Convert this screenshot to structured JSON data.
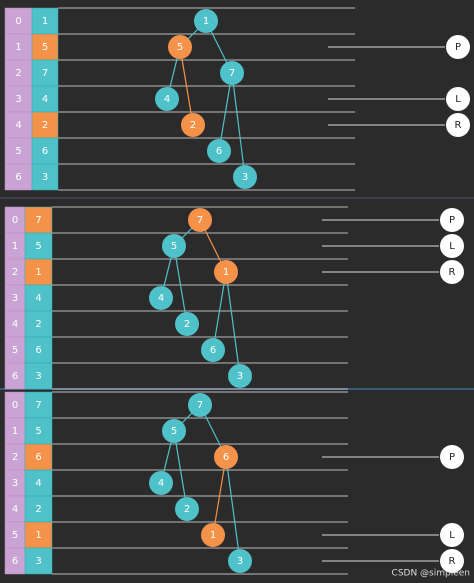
{
  "panels": [
    {
      "rows": [
        {
          "index": "0",
          "value": "1"
        },
        {
          "index": "1",
          "value": "5"
        },
        {
          "index": "2",
          "value": "7"
        },
        {
          "index": "3",
          "value": "4"
        },
        {
          "index": "4",
          "value": "2"
        },
        {
          "index": "5",
          "value": "6"
        },
        {
          "index": "6",
          "value": "3"
        }
      ],
      "highlight": [
        1,
        4
      ],
      "pointers": [
        {
          "label": "P",
          "row": 1
        },
        {
          "label": "L",
          "row": 3
        },
        {
          "label": "R",
          "row": 4
        }
      ]
    },
    {
      "rows": [
        {
          "index": "0",
          "value": "7"
        },
        {
          "index": "1",
          "value": "5"
        },
        {
          "index": "2",
          "value": "1"
        },
        {
          "index": "3",
          "value": "4"
        },
        {
          "index": "4",
          "value": "2"
        },
        {
          "index": "5",
          "value": "6"
        },
        {
          "index": "6",
          "value": "3"
        }
      ],
      "highlight": [
        0,
        2
      ],
      "pointers": [
        {
          "label": "P",
          "row": 0
        },
        {
          "label": "L",
          "row": 1
        },
        {
          "label": "R",
          "row": 2
        }
      ]
    },
    {
      "rows": [
        {
          "index": "0",
          "value": "7"
        },
        {
          "index": "1",
          "value": "5"
        },
        {
          "index": "2",
          "value": "6"
        },
        {
          "index": "3",
          "value": "4"
        },
        {
          "index": "4",
          "value": "2"
        },
        {
          "index": "5",
          "value": "1"
        },
        {
          "index": "6",
          "value": "3"
        }
      ],
      "highlight": [
        2,
        5
      ],
      "pointers": [
        {
          "label": "P",
          "row": 2
        },
        {
          "label": "L",
          "row": 5
        },
        {
          "label": "R",
          "row": 6
        }
      ]
    }
  ],
  "watermark": "CSDN @simpleen"
}
